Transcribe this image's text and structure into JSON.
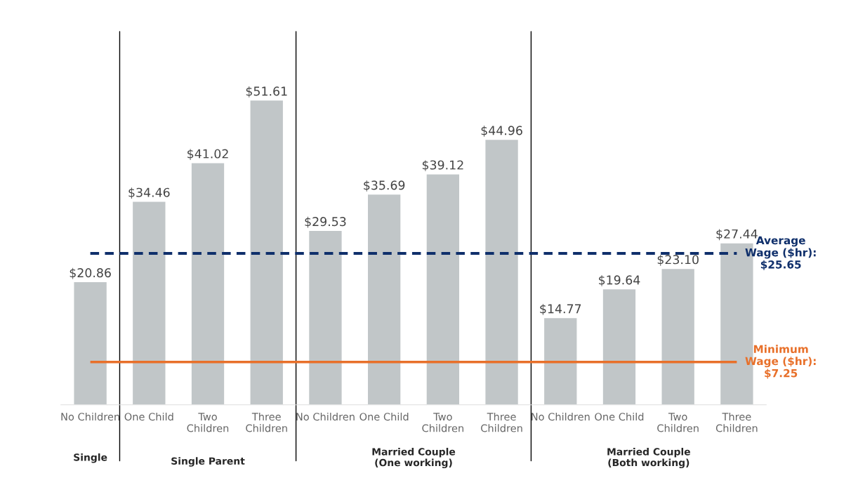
{
  "chart_data": {
    "type": "bar",
    "categories": [
      "No Children",
      "One Child",
      "Two\nChildren",
      "Three\nChildren",
      "No Children",
      "One Child",
      "Two\nChildren",
      "Three\nChildren",
      "No Children",
      "One Child",
      "Two\nChildren",
      "Three\nChildren"
    ],
    "values": [
      20.86,
      34.46,
      41.02,
      51.61,
      29.53,
      35.69,
      39.12,
      44.96,
      14.77,
      19.64,
      23.1,
      27.44
    ],
    "value_labels": [
      "$20.86",
      "$34.46",
      "$41.02",
      "$51.61",
      "$29.53",
      "$35.69",
      "$39.12",
      "$44.96",
      "$14.77",
      "$19.64",
      "$23.10",
      "$27.44"
    ],
    "color": "#c1c6c8",
    "ref_lines": [
      {
        "axis": "y",
        "value": 25.65,
        "label": "Average\nWage ($hr):\n$25.65",
        "color": "#0f2f6b",
        "line_style": "dashed"
      },
      {
        "axis": "y",
        "value": 7.25,
        "label": "Minimum\nWage ($hr):\n$7.25",
        "color": "#e8702a",
        "line_style": "solid"
      }
    ],
    "annotations": [
      "Single",
      "Single Parent",
      "Married Couple\n(One working)",
      "Married Couple\n(Both working)"
    ],
    "grid": false,
    "legend": false,
    "tick_labels": "x"
  }
}
